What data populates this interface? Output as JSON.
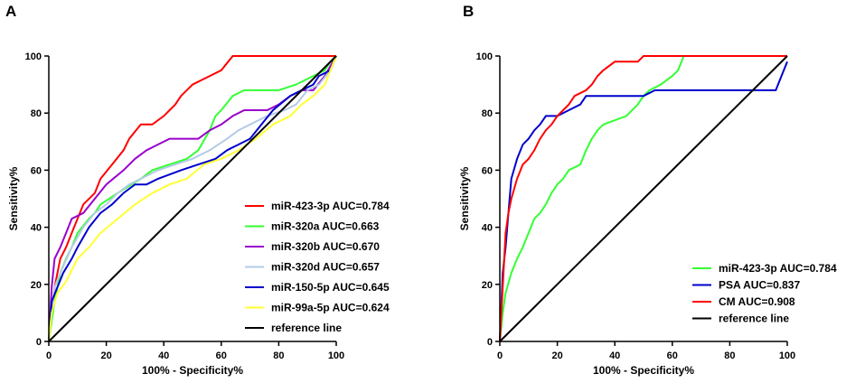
{
  "chart_data": [
    {
      "panel_label": "A",
      "type": "line",
      "xlabel": "100% - Specificity%",
      "ylabel": "Sensitivity%",
      "xlim": [
        0,
        100
      ],
      "ylim": [
        0,
        100
      ],
      "x_ticks": [
        0,
        20,
        40,
        60,
        80,
        100
      ],
      "y_ticks": [
        0,
        20,
        40,
        60,
        80,
        100
      ],
      "legend_position": "bottom-right",
      "series": [
        {
          "name": "miR-423-3p AUC=0.784",
          "color": "#ff0000",
          "points": [
            [
              0,
              0
            ],
            [
              1,
              10
            ],
            [
              2,
              19
            ],
            [
              4,
              29
            ],
            [
              6,
              33
            ],
            [
              8,
              38
            ],
            [
              10,
              43
            ],
            [
              12,
              48
            ],
            [
              16,
              52
            ],
            [
              18,
              57
            ],
            [
              22,
              62
            ],
            [
              26,
              67
            ],
            [
              28,
              71
            ],
            [
              32,
              76
            ],
            [
              36,
              76
            ],
            [
              40,
              79
            ],
            [
              42,
              81
            ],
            [
              44,
              83
            ],
            [
              46,
              86
            ],
            [
              48,
              88
            ],
            [
              50,
              90
            ],
            [
              56,
              93
            ],
            [
              60,
              95
            ],
            [
              64,
              100
            ],
            [
              100,
              100
            ]
          ]
        },
        {
          "name": "miR-320a AUC=0.663",
          "color": "#33ff33",
          "points": [
            [
              0,
              0
            ],
            [
              2,
              14
            ],
            [
              4,
              24
            ],
            [
              6,
              29
            ],
            [
              8,
              33
            ],
            [
              10,
              38
            ],
            [
              14,
              43
            ],
            [
              16,
              45
            ],
            [
              18,
              48
            ],
            [
              24,
              52
            ],
            [
              32,
              57
            ],
            [
              36,
              60
            ],
            [
              42,
              62
            ],
            [
              48,
              64
            ],
            [
              52,
              67
            ],
            [
              56,
              74
            ],
            [
              58,
              79
            ],
            [
              60,
              81
            ],
            [
              64,
              86
            ],
            [
              68,
              88
            ],
            [
              80,
              88
            ],
            [
              86,
              90
            ],
            [
              92,
              93
            ],
            [
              96,
              95
            ],
            [
              98,
              98
            ],
            [
              100,
              100
            ]
          ]
        },
        {
          "name": "miR-320b AUC=0.670",
          "color": "#9900cc",
          "points": [
            [
              0,
              0
            ],
            [
              1,
              19
            ],
            [
              2,
              29
            ],
            [
              4,
              33
            ],
            [
              6,
              38
            ],
            [
              8,
              43
            ],
            [
              12,
              45
            ],
            [
              16,
              50
            ],
            [
              20,
              55
            ],
            [
              26,
              60
            ],
            [
              30,
              64
            ],
            [
              34,
              67
            ],
            [
              38,
              69
            ],
            [
              42,
              71
            ],
            [
              52,
              71
            ],
            [
              56,
              74
            ],
            [
              60,
              76
            ],
            [
              64,
              79
            ],
            [
              68,
              81
            ],
            [
              76,
              81
            ],
            [
              80,
              83
            ],
            [
              84,
              86
            ],
            [
              88,
              88
            ],
            [
              92,
              88
            ],
            [
              96,
              93
            ],
            [
              100,
              100
            ]
          ]
        },
        {
          "name": "miR-320d AUC=0.657",
          "color": "#b3cbe6",
          "points": [
            [
              0,
              0
            ],
            [
              2,
              19
            ],
            [
              4,
              24
            ],
            [
              8,
              33
            ],
            [
              12,
              40
            ],
            [
              16,
              45
            ],
            [
              20,
              48
            ],
            [
              24,
              52
            ],
            [
              28,
              55
            ],
            [
              32,
              57
            ],
            [
              38,
              60
            ],
            [
              44,
              62
            ],
            [
              50,
              64
            ],
            [
              56,
              67
            ],
            [
              62,
              71
            ],
            [
              66,
              74
            ],
            [
              70,
              76
            ],
            [
              76,
              79
            ],
            [
              82,
              81
            ],
            [
              86,
              83
            ],
            [
              90,
              88
            ],
            [
              94,
              90
            ],
            [
              98,
              95
            ],
            [
              100,
              100
            ]
          ]
        },
        {
          "name": "miR-150-5p AUC=0.645",
          "color": "#0000cc",
          "points": [
            [
              0,
              0
            ],
            [
              1,
              14
            ],
            [
              3,
              19
            ],
            [
              5,
              24
            ],
            [
              8,
              29
            ],
            [
              10,
              33
            ],
            [
              14,
              40
            ],
            [
              18,
              45
            ],
            [
              22,
              48
            ],
            [
              26,
              52
            ],
            [
              30,
              55
            ],
            [
              34,
              55
            ],
            [
              38,
              57
            ],
            [
              46,
              60
            ],
            [
              52,
              62
            ],
            [
              58,
              64
            ],
            [
              62,
              67
            ],
            [
              66,
              69
            ],
            [
              70,
              71
            ],
            [
              74,
              76
            ],
            [
              78,
              81
            ],
            [
              84,
              86
            ],
            [
              88,
              88
            ],
            [
              92,
              90
            ],
            [
              94,
              93
            ],
            [
              98,
              95
            ],
            [
              100,
              100
            ]
          ]
        },
        {
          "name": "miR-99a-5p AUC=0.624",
          "color": "#ffff33",
          "points": [
            [
              0,
              0
            ],
            [
              1,
              10
            ],
            [
              3,
              17
            ],
            [
              6,
              21
            ],
            [
              10,
              29
            ],
            [
              14,
              33
            ],
            [
              18,
              38
            ],
            [
              24,
              43
            ],
            [
              30,
              48
            ],
            [
              36,
              52
            ],
            [
              42,
              55
            ],
            [
              48,
              57
            ],
            [
              54,
              62
            ],
            [
              60,
              64
            ],
            [
              66,
              67
            ],
            [
              72,
              71
            ],
            [
              78,
              76
            ],
            [
              84,
              79
            ],
            [
              88,
              83
            ],
            [
              92,
              86
            ],
            [
              96,
              90
            ],
            [
              100,
              100
            ]
          ]
        },
        {
          "name": "reference line",
          "color": "#000000",
          "points": [
            [
              0,
              0
            ],
            [
              100,
              100
            ]
          ]
        }
      ]
    },
    {
      "panel_label": "B",
      "type": "line",
      "xlabel": "100% - Specificity%",
      "ylabel": "Sensitivity%",
      "xlim": [
        0,
        100
      ],
      "ylim": [
        0,
        100
      ],
      "x_ticks": [
        0,
        20,
        40,
        60,
        80,
        100
      ],
      "y_ticks": [
        0,
        20,
        40,
        60,
        80,
        100
      ],
      "legend_position": "bottom-right",
      "series": [
        {
          "name": "miR-423-3p AUC=0.784",
          "color": "#33ff33",
          "points": [
            [
              0,
              0
            ],
            [
              1,
              10
            ],
            [
              2,
              17
            ],
            [
              4,
              24
            ],
            [
              6,
              29
            ],
            [
              8,
              33
            ],
            [
              10,
              38
            ],
            [
              12,
              43
            ],
            [
              14,
              45
            ],
            [
              16,
              48
            ],
            [
              18,
              52
            ],
            [
              20,
              55
            ],
            [
              22,
              57
            ],
            [
              24,
              60
            ],
            [
              28,
              62
            ],
            [
              30,
              67
            ],
            [
              32,
              71
            ],
            [
              34,
              74
            ],
            [
              36,
              76
            ],
            [
              44,
              79
            ],
            [
              48,
              83
            ],
            [
              50,
              86
            ],
            [
              52,
              88
            ],
            [
              56,
              90
            ],
            [
              60,
              93
            ],
            [
              62,
              95
            ],
            [
              64,
              100
            ],
            [
              100,
              100
            ]
          ]
        },
        {
          "name": "PSA AUC=0.837",
          "color": "#0000cc",
          "points": [
            [
              0,
              0
            ],
            [
              1,
              24
            ],
            [
              2,
              33
            ],
            [
              3,
              45
            ],
            [
              4,
              57
            ],
            [
              6,
              64
            ],
            [
              8,
              69
            ],
            [
              10,
              71
            ],
            [
              12,
              74
            ],
            [
              14,
              76
            ],
            [
              16,
              79
            ],
            [
              20,
              79
            ],
            [
              24,
              81
            ],
            [
              28,
              83
            ],
            [
              30,
              86
            ],
            [
              50,
              86
            ],
            [
              54,
              88
            ],
            [
              96,
              88
            ],
            [
              98,
              93
            ],
            [
              100,
              98
            ]
          ]
        },
        {
          "name": "CM AUC=0.908",
          "color": "#ff0000",
          "points": [
            [
              0,
              0
            ],
            [
              1,
              19
            ],
            [
              2,
              38
            ],
            [
              3,
              45
            ],
            [
              4,
              50
            ],
            [
              6,
              57
            ],
            [
              8,
              62
            ],
            [
              10,
              64
            ],
            [
              12,
              67
            ],
            [
              14,
              71
            ],
            [
              16,
              74
            ],
            [
              18,
              76
            ],
            [
              20,
              79
            ],
            [
              22,
              81
            ],
            [
              24,
              83
            ],
            [
              26,
              86
            ],
            [
              30,
              88
            ],
            [
              32,
              90
            ],
            [
              34,
              93
            ],
            [
              36,
              95
            ],
            [
              40,
              98
            ],
            [
              48,
              98
            ],
            [
              50,
              100
            ],
            [
              100,
              100
            ]
          ]
        },
        {
          "name": "reference line",
          "color": "#000000",
          "points": [
            [
              0,
              0
            ],
            [
              100,
              100
            ]
          ]
        }
      ]
    }
  ]
}
